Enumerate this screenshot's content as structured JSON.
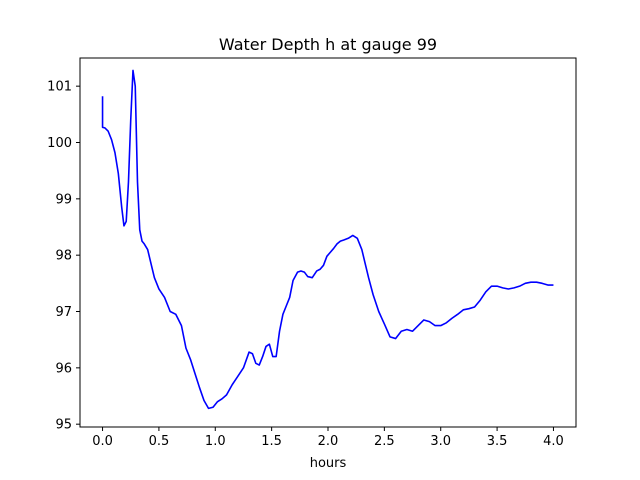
{
  "chart_data": {
    "type": "line",
    "title": "Water Depth h at gauge 99",
    "xlabel": "hours",
    "ylabel": "",
    "xlim": [
      -0.2,
      4.2
    ],
    "ylim": [
      94.95,
      101.5
    ],
    "xticks": [
      0.0,
      0.5,
      1.0,
      1.5,
      2.0,
      2.5,
      3.0,
      3.5,
      4.0
    ],
    "xtick_labels": [
      "0.0",
      "0.5",
      "1.0",
      "1.5",
      "2.0",
      "2.5",
      "3.0",
      "3.5",
      "4.0"
    ],
    "yticks": [
      95,
      96,
      97,
      98,
      99,
      100,
      101
    ],
    "ytick_labels": [
      "95",
      "96",
      "97",
      "98",
      "99",
      "100",
      "101"
    ],
    "grid": false,
    "series": [
      {
        "color": "#0000ff",
        "x": [
          0.0,
          0.0,
          0.02,
          0.05,
          0.08,
          0.11,
          0.14,
          0.17,
          0.19,
          0.21,
          0.23,
          0.25,
          0.27,
          0.29,
          0.31,
          0.33,
          0.35,
          0.37,
          0.4,
          0.43,
          0.46,
          0.5,
          0.55,
          0.6,
          0.65,
          0.7,
          0.74,
          0.78,
          0.82,
          0.86,
          0.9,
          0.94,
          0.98,
          1.02,
          1.06,
          1.1,
          1.15,
          1.2,
          1.25,
          1.3,
          1.33,
          1.36,
          1.39,
          1.42,
          1.45,
          1.48,
          1.51,
          1.54,
          1.57,
          1.6,
          1.63,
          1.66,
          1.69,
          1.73,
          1.76,
          1.79,
          1.82,
          1.86,
          1.9,
          1.93,
          1.96,
          1.99,
          2.02,
          2.05,
          2.08,
          2.11,
          2.14,
          2.18,
          2.22,
          2.26,
          2.3,
          2.33,
          2.36,
          2.4,
          2.45,
          2.5,
          2.55,
          2.6,
          2.65,
          2.7,
          2.75,
          2.8,
          2.85,
          2.9,
          2.95,
          3.0,
          3.05,
          3.1,
          3.15,
          3.2,
          3.25,
          3.3,
          3.35,
          3.4,
          3.45,
          3.5,
          3.55,
          3.6,
          3.65,
          3.7,
          3.75,
          3.8,
          3.85,
          3.9,
          3.95,
          4.0
        ],
        "y": [
          100.82,
          100.27,
          100.26,
          100.2,
          100.05,
          99.82,
          99.45,
          98.85,
          98.52,
          98.6,
          99.3,
          100.4,
          101.28,
          101.0,
          99.3,
          98.45,
          98.25,
          98.2,
          98.1,
          97.85,
          97.6,
          97.4,
          97.25,
          97.0,
          96.95,
          96.75,
          96.35,
          96.15,
          95.9,
          95.65,
          95.42,
          95.28,
          95.3,
          95.4,
          95.45,
          95.52,
          95.7,
          95.85,
          96.0,
          96.28,
          96.25,
          96.08,
          96.05,
          96.2,
          96.38,
          96.42,
          96.2,
          96.2,
          96.65,
          96.95,
          97.1,
          97.25,
          97.55,
          97.7,
          97.72,
          97.7,
          97.62,
          97.6,
          97.72,
          97.75,
          97.82,
          97.98,
          98.05,
          98.12,
          98.2,
          98.25,
          98.27,
          98.3,
          98.35,
          98.3,
          98.1,
          97.85,
          97.6,
          97.3,
          97.0,
          96.78,
          96.55,
          96.52,
          96.65,
          96.68,
          96.65,
          96.75,
          96.85,
          96.82,
          96.75,
          96.75,
          96.8,
          96.88,
          96.95,
          97.03,
          97.05,
          97.08,
          97.2,
          97.35,
          97.45,
          97.45,
          97.42,
          97.4,
          97.42,
          97.45,
          97.5,
          97.52,
          97.52,
          97.5,
          97.47,
          97.47
        ]
      }
    ]
  }
}
